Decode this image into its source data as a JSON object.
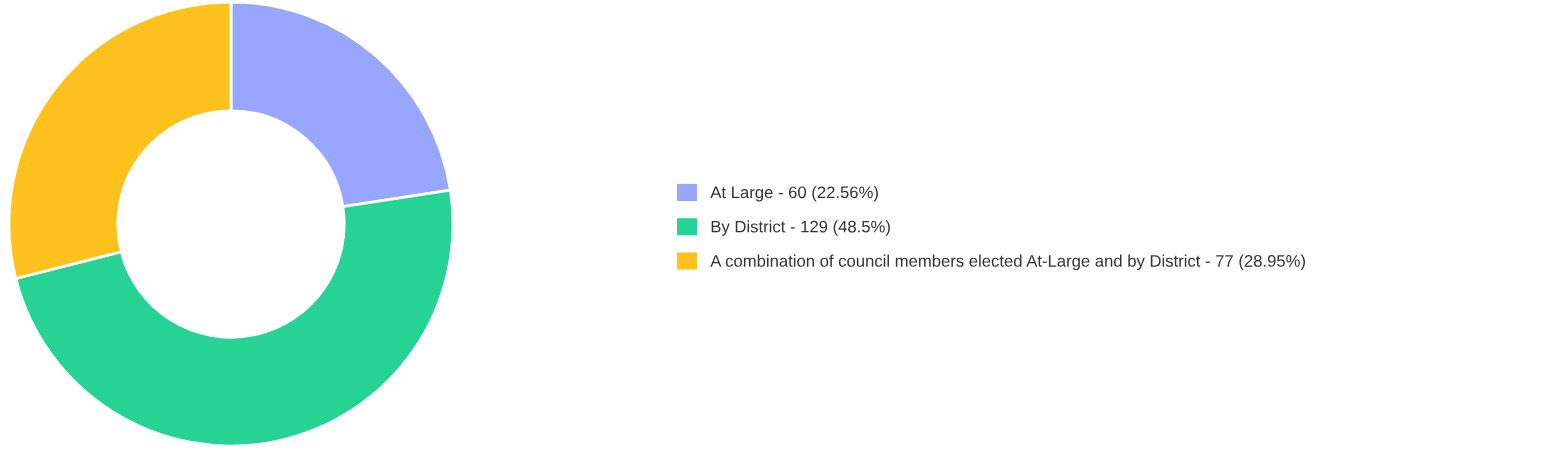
{
  "chart_data": {
    "type": "donut",
    "categories": [
      "At Large",
      "By District",
      "A combination of council members elected At-Large and by District"
    ],
    "values": [
      60,
      129,
      77
    ],
    "value_labels": [
      "60 (22.56%)",
      "129 (48.5%)",
      "77 (28.95%)"
    ],
    "colors": [
      "#99a6fe",
      "#26d395",
      "#fec21f"
    ],
    "legend": "right"
  }
}
